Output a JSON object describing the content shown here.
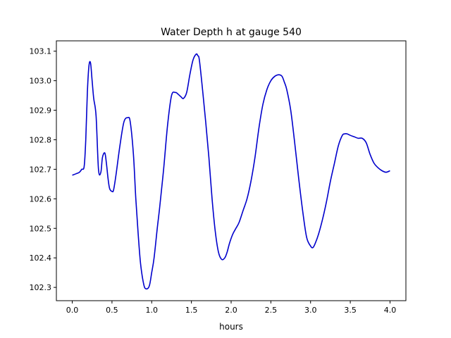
{
  "chart_data": {
    "type": "line",
    "title": "Water Depth h at gauge 540",
    "xlabel": "hours",
    "ylabel": "",
    "xlim": [
      -0.2,
      4.2
    ],
    "ylim": [
      102.255,
      103.135
    ],
    "xticks": [
      0.0,
      0.5,
      1.0,
      1.5,
      2.0,
      2.5,
      3.0,
      3.5,
      4.0
    ],
    "xtick_labels": [
      "0.0",
      "0.5",
      "1.0",
      "1.5",
      "2.0",
      "2.5",
      "3.0",
      "3.5",
      "4.0"
    ],
    "yticks": [
      102.3,
      102.4,
      102.5,
      102.6,
      102.7,
      102.8,
      102.9,
      103.0,
      103.1
    ],
    "ytick_labels": [
      "102.3",
      "102.4",
      "102.5",
      "102.6",
      "102.7",
      "102.8",
      "102.9",
      "103.0",
      "103.1"
    ],
    "grid": false,
    "series": [
      {
        "color": "#0000cc",
        "x": [
          0.0,
          0.05,
          0.09,
          0.12,
          0.15,
          0.17,
          0.19,
          0.21,
          0.23,
          0.25,
          0.27,
          0.3,
          0.33,
          0.36,
          0.38,
          0.41,
          0.43,
          0.45,
          0.47,
          0.5,
          0.52,
          0.55,
          0.6,
          0.65,
          0.7,
          0.73,
          0.77,
          0.8,
          0.83,
          0.86,
          0.9,
          0.93,
          0.97,
          1.0,
          1.03,
          1.07,
          1.1,
          1.15,
          1.2,
          1.25,
          1.3,
          1.33,
          1.37,
          1.4,
          1.44,
          1.48,
          1.52,
          1.56,
          1.58,
          1.6,
          1.64,
          1.68,
          1.72,
          1.76,
          1.8,
          1.84,
          1.88,
          1.92,
          1.95,
          1.98,
          2.02,
          2.06,
          2.1,
          2.15,
          2.2,
          2.25,
          2.3,
          2.35,
          2.4,
          2.45,
          2.5,
          2.55,
          2.6,
          2.64,
          2.67,
          2.7,
          2.75,
          2.8,
          2.85,
          2.9,
          2.95,
          3.0,
          3.03,
          3.06,
          3.1,
          3.15,
          3.2,
          3.25,
          3.3,
          3.35,
          3.4,
          3.43,
          3.46,
          3.5,
          3.55,
          3.6,
          3.65,
          3.7,
          3.75,
          3.8,
          3.85,
          3.9,
          3.95,
          4.0
        ],
        "y": [
          102.68,
          102.685,
          102.69,
          102.7,
          102.71,
          102.8,
          102.96,
          103.05,
          103.06,
          103.0,
          102.94,
          102.88,
          102.7,
          102.69,
          102.74,
          102.755,
          102.72,
          102.67,
          102.635,
          102.625,
          102.63,
          102.68,
          102.78,
          102.86,
          102.875,
          102.86,
          102.75,
          102.6,
          102.48,
          102.38,
          102.31,
          102.295,
          102.305,
          102.35,
          102.4,
          102.5,
          102.57,
          102.7,
          102.85,
          102.95,
          102.96,
          102.955,
          102.945,
          102.94,
          102.96,
          103.02,
          103.07,
          103.09,
          103.085,
          103.07,
          102.97,
          102.86,
          102.74,
          102.6,
          102.49,
          102.42,
          102.395,
          102.4,
          102.42,
          102.45,
          102.48,
          102.5,
          102.52,
          102.56,
          102.6,
          102.66,
          102.74,
          102.84,
          102.92,
          102.97,
          103.0,
          103.015,
          103.02,
          103.015,
          102.995,
          102.97,
          102.9,
          102.79,
          102.67,
          102.56,
          102.47,
          102.44,
          102.435,
          102.45,
          102.48,
          102.53,
          102.59,
          102.66,
          102.72,
          102.78,
          102.815,
          102.82,
          102.82,
          102.815,
          102.81,
          102.805,
          102.805,
          102.79,
          102.75,
          102.72,
          102.705,
          102.695,
          102.69,
          102.695
        ]
      }
    ]
  }
}
